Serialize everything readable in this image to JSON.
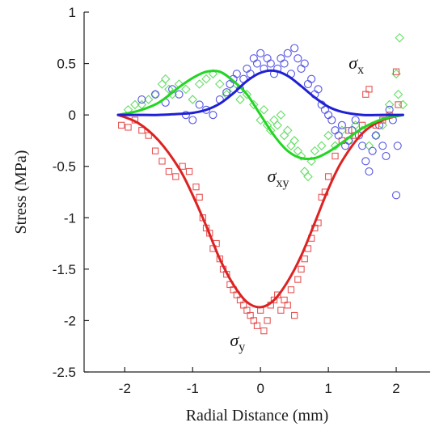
{
  "chart_data": {
    "type": "scatter",
    "title": "",
    "xlabel": "Radial Distance (mm)",
    "ylabel": "Stress (MPa)",
    "xlim": [
      -2.6,
      2.5
    ],
    "ylim": [
      -2.5,
      1
    ],
    "xticks": [
      -2,
      -1,
      0,
      1,
      2
    ],
    "xtick_labels": [
      "-2",
      "-1",
      "0",
      "1",
      "2"
    ],
    "yticks": [
      1,
      0.5,
      0,
      -0.5,
      -1,
      -1.5,
      -2,
      -2.5
    ],
    "ytick_labels": [
      "1",
      "0.5",
      "0",
      "-0.5",
      "-1",
      "-1.5",
      "-2",
      "-2.5"
    ],
    "grid": false,
    "series": [
      {
        "key": "sx",
        "label_main": "σ",
        "label_sub": "x",
        "label_pos": [
          1.3,
          0.45
        ],
        "color": "#1f1fd6",
        "marker_color": "#5555e6",
        "marker": "circle",
        "fit": {
          "x": [
            -2.1,
            -1.8,
            -1.5,
            -1.2,
            -1.0,
            -0.8,
            -0.6,
            -0.4,
            -0.2,
            0.0,
            0.2,
            0.4,
            0.6,
            0.8,
            1.0,
            1.2,
            1.5,
            1.8,
            2.1
          ],
          "y": [
            0,
            0,
            0,
            0.01,
            0.02,
            0.05,
            0.11,
            0.21,
            0.33,
            0.41,
            0.43,
            0.38,
            0.28,
            0.17,
            0.08,
            0.03,
            0,
            0,
            0
          ]
        },
        "points": {
          "x": [
            -1.75,
            -1.55,
            -1.4,
            -1.3,
            -1.2,
            -1.1,
            -1.0,
            -0.9,
            -0.8,
            -0.7,
            -0.6,
            -0.5,
            -0.45,
            -0.4,
            -0.35,
            -0.3,
            -0.25,
            -0.2,
            -0.15,
            -0.1,
            -0.05,
            0.0,
            0.05,
            0.1,
            0.15,
            0.2,
            0.25,
            0.3,
            0.35,
            0.4,
            0.45,
            0.5,
            0.55,
            0.6,
            0.65,
            0.7,
            0.75,
            0.8,
            0.85,
            0.9,
            0.95,
            1.0,
            1.05,
            1.1,
            1.15,
            1.2,
            1.25,
            1.3,
            1.35,
            1.4,
            1.45,
            1.5,
            1.55,
            1.6,
            1.65,
            1.7,
            1.75,
            1.8,
            1.85,
            1.9,
            1.95,
            2.0,
            2.02
          ],
          "y": [
            0.15,
            0.2,
            0.12,
            0.25,
            0.2,
            0.0,
            -0.05,
            0.1,
            0.05,
            0.0,
            0.15,
            0.22,
            0.3,
            0.35,
            0.4,
            0.25,
            0.35,
            0.45,
            0.4,
            0.55,
            0.5,
            0.6,
            0.45,
            0.55,
            0.5,
            0.4,
            0.45,
            0.55,
            0.5,
            0.6,
            0.4,
            0.65,
            0.55,
            0.45,
            0.5,
            0.3,
            0.35,
            0.2,
            0.25,
            0.1,
            0.05,
            0.0,
            -0.05,
            -0.15,
            -0.2,
            -0.1,
            -0.3,
            -0.25,
            -0.15,
            -0.05,
            -0.2,
            -0.3,
            -0.45,
            -0.55,
            -0.35,
            -0.2,
            -0.1,
            -0.3,
            -0.4,
            0.05,
            -0.05,
            -0.78,
            -0.3
          ]
        }
      },
      {
        "key": "sxy",
        "label_main": "σ",
        "label_sub": "xy",
        "label_pos": [
          0.1,
          -0.65
        ],
        "color": "#22d622",
        "marker_color": "#66dd66",
        "marker": "diamond",
        "fit": {
          "x": [
            -2.1,
            -1.8,
            -1.5,
            -1.2,
            -1.0,
            -0.8,
            -0.6,
            -0.4,
            -0.2,
            0.0,
            0.2,
            0.4,
            0.6,
            0.8,
            1.0,
            1.2,
            1.5,
            1.8,
            2.1
          ],
          "y": [
            0,
            0.04,
            0.12,
            0.27,
            0.36,
            0.42,
            0.42,
            0.33,
            0.2,
            0,
            -0.2,
            -0.35,
            -0.42,
            -0.42,
            -0.36,
            -0.27,
            -0.13,
            -0.04,
            0
          ]
        },
        "points": {
          "x": [
            -1.95,
            -1.85,
            -1.75,
            -1.65,
            -1.55,
            -1.45,
            -1.4,
            -1.35,
            -1.3,
            -1.2,
            -1.1,
            -1.0,
            -0.9,
            -0.8,
            -0.7,
            -0.6,
            -0.5,
            -0.4,
            -0.3,
            -0.2,
            -0.1,
            0.0,
            0.05,
            0.1,
            0.15,
            0.2,
            0.25,
            0.3,
            0.35,
            0.4,
            0.45,
            0.5,
            0.55,
            0.6,
            0.65,
            0.7,
            0.75,
            0.8,
            0.9,
            1.0,
            1.1,
            1.2,
            1.3,
            1.4,
            1.5,
            1.6,
            1.7,
            1.8,
            1.9,
            2.0,
            2.03,
            2.05,
            2.1
          ],
          "y": [
            0.05,
            0.1,
            0.1,
            0.15,
            0.2,
            0.3,
            0.35,
            0.25,
            0.2,
            0.3,
            0.25,
            0.15,
            0.3,
            0.35,
            0.4,
            0.3,
            0.2,
            0.25,
            0.15,
            0.2,
            0.1,
            -0.05,
            0.05,
            -0.1,
            -0.15,
            -0.05,
            -0.1,
            0.0,
            -0.2,
            -0.15,
            -0.3,
            -0.25,
            -0.35,
            -0.4,
            -0.55,
            -0.6,
            -0.45,
            -0.35,
            -0.3,
            -0.2,
            -0.3,
            -0.15,
            -0.25,
            -0.1,
            -0.15,
            -0.3,
            -0.2,
            -0.1,
            0.1,
            0.4,
            0.2,
            0.75,
            0.1
          ]
        }
      },
      {
        "key": "sy",
        "label_main": "σ",
        "label_sub": "y",
        "label_pos": [
          -0.45,
          -2.25
        ],
        "color": "#dd2222",
        "marker_color": "#e65555",
        "marker": "square",
        "fit": {
          "x": [
            -2.1,
            -1.8,
            -1.5,
            -1.2,
            -1.0,
            -0.8,
            -0.6,
            -0.4,
            -0.2,
            0.0,
            0.2,
            0.4,
            0.6,
            0.8,
            1.0,
            1.2,
            1.5,
            1.8,
            2.1
          ],
          "y": [
            0,
            -0.08,
            -0.25,
            -0.52,
            -0.78,
            -1.08,
            -1.4,
            -1.65,
            -1.82,
            -1.87,
            -1.8,
            -1.62,
            -1.37,
            -1.05,
            -0.72,
            -0.45,
            -0.18,
            -0.05,
            0
          ]
        },
        "points": {
          "x": [
            -2.05,
            -1.95,
            -1.85,
            -1.75,
            -1.65,
            -1.55,
            -1.45,
            -1.35,
            -1.25,
            -1.15,
            -1.05,
            -0.95,
            -0.9,
            -0.85,
            -0.8,
            -0.75,
            -0.7,
            -0.65,
            -0.6,
            -0.55,
            -0.5,
            -0.45,
            -0.4,
            -0.35,
            -0.3,
            -0.25,
            -0.2,
            -0.15,
            -0.1,
            -0.05,
            0.0,
            0.05,
            0.1,
            0.15,
            0.2,
            0.25,
            0.3,
            0.35,
            0.4,
            0.45,
            0.5,
            0.55,
            0.6,
            0.65,
            0.7,
            0.75,
            0.8,
            0.85,
            0.9,
            0.95,
            1.0,
            1.1,
            1.2,
            1.3,
            1.4,
            1.5,
            1.55,
            1.6,
            1.7,
            1.8,
            1.9,
            2.0,
            2.03
          ],
          "y": [
            -0.1,
            -0.12,
            -0.05,
            -0.15,
            -0.2,
            -0.35,
            -0.45,
            -0.55,
            -0.6,
            -0.5,
            -0.55,
            -0.7,
            -0.8,
            -1.0,
            -1.1,
            -1.15,
            -1.3,
            -1.25,
            -1.4,
            -1.5,
            -1.55,
            -1.65,
            -1.7,
            -1.75,
            -1.8,
            -1.85,
            -1.9,
            -1.95,
            -2.0,
            -2.05,
            -1.9,
            -2.1,
            -2.0,
            -1.85,
            -1.8,
            -1.75,
            -1.9,
            -1.8,
            -1.85,
            -1.7,
            -1.95,
            -1.6,
            -1.5,
            -1.4,
            -1.3,
            -1.2,
            -1.1,
            -1.05,
            -0.8,
            -0.75,
            -0.6,
            -0.4,
            -0.25,
            -0.15,
            -0.2,
            -0.1,
            0.2,
            0.25,
            -0.1,
            -0.05,
            0.0,
            0.42,
            0.1
          ]
        }
      }
    ]
  }
}
